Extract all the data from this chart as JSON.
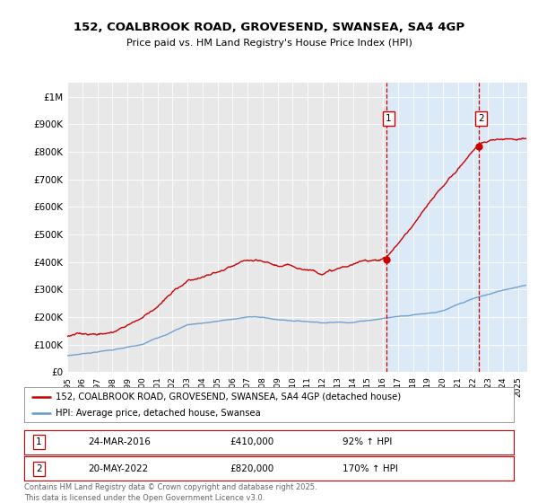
{
  "title": "152, COALBROOK ROAD, GROVESEND, SWANSEA, SA4 4GP",
  "subtitle": "Price paid vs. HM Land Registry's House Price Index (HPI)",
  "bg_color": "#ffffff",
  "plot_bg_color": "#e8e8e8",
  "highlight_bg_color": "#dce9f7",
  "ylabel_ticks": [
    "£0",
    "£100K",
    "£200K",
    "£300K",
    "£400K",
    "£500K",
    "£600K",
    "£700K",
    "£800K",
    "£900K",
    "£1M"
  ],
  "ytick_values": [
    0,
    100000,
    200000,
    300000,
    400000,
    500000,
    600000,
    700000,
    800000,
    900000,
    1000000
  ],
  "sale1_date": 2016.22,
  "sale1_price": 410000,
  "sale1_label": "1",
  "sale2_date": 2022.38,
  "sale2_price": 820000,
  "sale2_label": "2",
  "red_color": "#cc0000",
  "blue_color": "#6699cc",
  "dashed_color": "#cc0000",
  "legend_line1": "152, COALBROOK ROAD, GROVESEND, SWANSEA, SA4 4GP (detached house)",
  "legend_line2": "HPI: Average price, detached house, Swansea",
  "footer": "Contains HM Land Registry data © Crown copyright and database right 2025.\nThis data is licensed under the Open Government Licence v3.0.",
  "xtick_years": [
    1995,
    1996,
    1997,
    1998,
    1999,
    2000,
    2001,
    2002,
    2003,
    2004,
    2005,
    2006,
    2007,
    2008,
    2009,
    2010,
    2011,
    2012,
    2013,
    2014,
    2015,
    2016,
    2017,
    2018,
    2019,
    2020,
    2021,
    2022,
    2023,
    2024,
    2025
  ],
  "sale1_info_num": "1",
  "sale1_info_date": "24-MAR-2016",
  "sale1_info_price": "£410,000",
  "sale1_info_hpi": "92% ↑ HPI",
  "sale2_info_num": "2",
  "sale2_info_date": "20-MAY-2022",
  "sale2_info_price": "£820,000",
  "sale2_info_hpi": "170% ↑ HPI",
  "footer_color": "#666666"
}
